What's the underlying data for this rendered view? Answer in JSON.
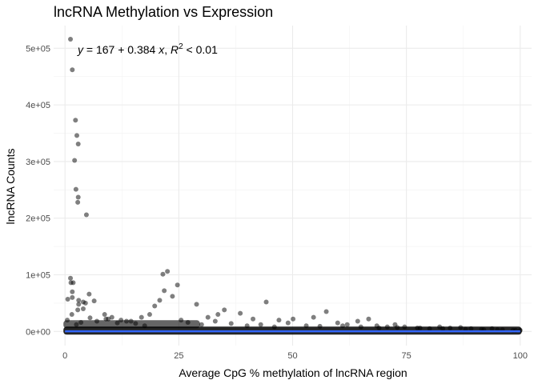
{
  "chart_data": {
    "type": "scatter",
    "title": "lncRNA Methylation vs Expression",
    "xlabel": "Average CpG % methylation of lncRNA region",
    "ylabel": "lncRNA Counts",
    "xlim": [
      -2.5,
      102.5
    ],
    "ylim": [
      -25000,
      540000
    ],
    "x_ticks": [
      0,
      25,
      50,
      75,
      100
    ],
    "x_tick_labels": [
      "0",
      "25",
      "50",
      "75",
      "100"
    ],
    "y_ticks": [
      0,
      100000,
      200000,
      300000,
      400000,
      500000
    ],
    "y_tick_labels": [
      "0e+00",
      "1e+05",
      "2e+05",
      "3e+05",
      "4e+05",
      "5e+05"
    ],
    "grid": true,
    "point_color": "#000000",
    "point_opacity": 0.5,
    "line_color": "#3366FF",
    "regression": {
      "intercept": 167,
      "slope": 0.384,
      "label_parts": [
        "y",
        " = 167 + 0.384 ",
        "x",
        ", ",
        "R",
        "2",
        " < 0.01"
      ]
    },
    "series": [
      {
        "x": [
          1.2,
          1.6,
          2.3,
          2.6,
          2.9,
          2.1,
          2.4,
          2.9,
          2.8,
          4.7,
          1.2,
          4.0,
          3.0,
          22.5,
          21.5,
          24.7,
          1.8,
          1.3,
          1.6,
          0.6,
          3.0,
          1.6,
          5.3,
          6.4,
          4.5,
          4.0,
          2.8,
          8.7,
          10.3,
          9.0,
          12.3,
          14.5,
          16.8,
          19.7,
          20.8,
          18.6,
          21.8,
          23.6,
          28.9,
          31.4,
          35.0,
          33.6,
          38.5,
          41.3,
          44.2,
          47.0,
          50.1,
          54.6,
          57.4,
          59.9,
          62.0,
          64.3,
          66.7,
          68.5,
          70.8,
          72.5,
          74.6,
          77.4,
          80.1,
          82.3,
          84.6,
          86.9,
          89.2,
          91.5,
          93.8,
          96.1,
          98.4,
          100.0,
          0.5,
          1.5,
          2.5,
          3.5,
          5.5,
          7.0,
          9.5,
          11.5,
          13.5,
          15.5,
          17.5,
          25.5,
          27.0,
          30.0,
          33.0,
          36.5,
          40.0,
          43.0,
          46.0,
          49.0,
          53.0,
          56.0,
          61.0,
          65.0,
          69.0,
          73.0,
          78.0,
          83.0,
          88.0,
          92.0,
          95.0,
          99.0
        ],
        "y": [
          516000,
          462000,
          373000,
          346000,
          331000,
          302000,
          251000,
          237000,
          228000,
          206000,
          94000,
          52000,
          48000,
          106000,
          101000,
          82000,
          86000,
          86000,
          70000,
          57000,
          55000,
          60000,
          66000,
          54000,
          50000,
          40000,
          38000,
          30000,
          25000,
          22000,
          20000,
          18000,
          25000,
          45000,
          55000,
          30000,
          72000,
          62000,
          48000,
          25000,
          38000,
          30000,
          32000,
          22000,
          52000,
          20000,
          22000,
          25000,
          35000,
          15000,
          12000,
          18000,
          22000,
          10000,
          8000,
          12000,
          8000,
          6000,
          5000,
          8000,
          6000,
          7000,
          5000,
          4000,
          5000,
          3000,
          2000,
          2000,
          20000,
          30000,
          12000,
          16000,
          24000,
          18000,
          22000,
          15000,
          18000,
          14000,
          10000,
          20000,
          16000,
          12000,
          18000,
          14000,
          10000,
          12000,
          8000,
          15000,
          10000,
          9000,
          10000,
          8000,
          6000,
          7000,
          6000,
          5000,
          4000,
          3000,
          3000,
          2000
        ]
      }
    ]
  }
}
